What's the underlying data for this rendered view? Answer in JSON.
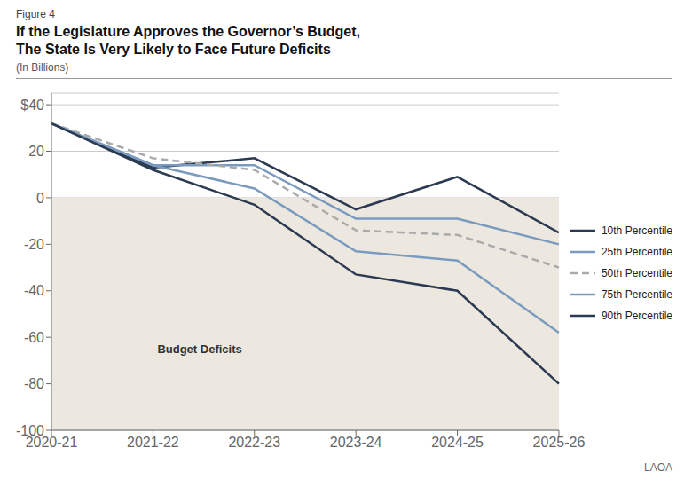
{
  "chart_data": {
    "type": "line",
    "figure_label": "Figure 4",
    "title": "If the Legislature Approves the Governor’s Budget,\nThe State Is Very Likely to Face Future Deficits",
    "subtitle": "(In Billions)",
    "categories": [
      "2020-21",
      "2021-22",
      "2022-23",
      "2023-24",
      "2024-25",
      "2025-26"
    ],
    "series": [
      {
        "name": "10th Percentile",
        "color": "#2b3a52",
        "line_style": "solid",
        "values": [
          32,
          13,
          17,
          -5,
          9,
          -15
        ]
      },
      {
        "name": "25th Percentile",
        "color": "#7a9bbf",
        "line_style": "solid",
        "values": [
          32,
          14,
          14,
          -9,
          -9,
          -20
        ]
      },
      {
        "name": "50th Percentile",
        "color": "#aaaaaa",
        "line_style": "dashed",
        "values": [
          32,
          17,
          12,
          -14,
          -16,
          -30
        ]
      },
      {
        "name": "75th Percentile",
        "color": "#7a9bbf",
        "line_style": "solid",
        "values": [
          32,
          14,
          4,
          -23,
          -27,
          -58
        ]
      },
      {
        "name": "90th Percentile",
        "color": "#2b3a52",
        "line_style": "solid",
        "values": [
          32,
          12,
          -3,
          -33,
          -40,
          -80
        ]
      }
    ],
    "ylim": [
      -100,
      45
    ],
    "yticks": [
      -100,
      -80,
      -60,
      -40,
      -20,
      0,
      20,
      {
        "value": 40,
        "label": "$40"
      }
    ],
    "grid": true,
    "legend": "right",
    "annotations": [
      {
        "text": "Budget Deficits",
        "x": "2021-22",
        "y": -65,
        "span": [
          -100,
          0
        ],
        "color": "#ede8df"
      }
    ],
    "watermark": "LAOA"
  }
}
